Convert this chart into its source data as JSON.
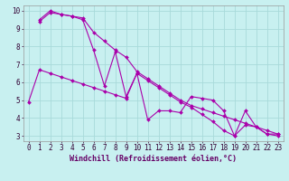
{
  "xlabel": "Windchill (Refroidissement éolien,°C)",
  "bg_color": "#c8f0f0",
  "grid_color": "#a8dada",
  "line_color": "#aa00aa",
  "xlim": [
    -0.5,
    23.5
  ],
  "ylim": [
    2.7,
    10.3
  ],
  "yticks": [
    3,
    4,
    5,
    6,
    7,
    8,
    9,
    10
  ],
  "xticks": [
    0,
    1,
    2,
    3,
    4,
    5,
    6,
    7,
    8,
    9,
    10,
    11,
    12,
    13,
    14,
    15,
    16,
    17,
    18,
    19,
    20,
    21,
    22,
    23
  ],
  "series": [
    {
      "x": [
        1,
        2,
        3,
        4,
        5,
        6,
        7,
        8,
        9,
        10,
        11,
        12,
        13,
        14,
        15,
        16,
        17,
        18,
        19,
        20,
        21,
        22,
        23
      ],
      "y": [
        9.4,
        9.9,
        9.8,
        9.7,
        9.6,
        8.8,
        8.3,
        7.8,
        7.4,
        6.6,
        6.2,
        5.8,
        5.4,
        5.0,
        4.7,
        4.5,
        4.3,
        4.1,
        3.9,
        3.7,
        3.5,
        3.3,
        3.1
      ]
    },
    {
      "x": [
        1,
        2,
        3,
        4,
        5,
        6,
        7,
        8,
        9,
        10,
        11,
        12,
        13,
        14,
        15,
        16,
        17,
        18,
        19,
        20,
        21,
        22,
        23
      ],
      "y": [
        9.5,
        10.0,
        9.8,
        9.7,
        9.5,
        7.8,
        5.8,
        7.7,
        5.2,
        6.5,
        3.9,
        4.4,
        4.4,
        4.3,
        5.2,
        5.1,
        5.0,
        4.4,
        3.0,
        3.6,
        3.5,
        3.1,
        3.1
      ]
    },
    {
      "x": [
        0,
        1,
        2,
        3,
        4,
        5,
        6,
        7,
        8,
        9,
        10,
        11,
        12,
        13,
        14,
        15,
        16,
        17,
        18,
        19,
        20,
        21,
        22,
        23
      ],
      "y": [
        4.9,
        6.7,
        6.5,
        6.3,
        6.1,
        5.9,
        5.7,
        5.5,
        5.3,
        5.1,
        6.5,
        6.1,
        5.7,
        5.3,
        4.9,
        4.6,
        4.2,
        3.8,
        3.3,
        3.0,
        4.4,
        3.5,
        3.1,
        3.0
      ]
    }
  ],
  "tick_fontsize": 5.5,
  "xlabel_fontsize": 6.0
}
